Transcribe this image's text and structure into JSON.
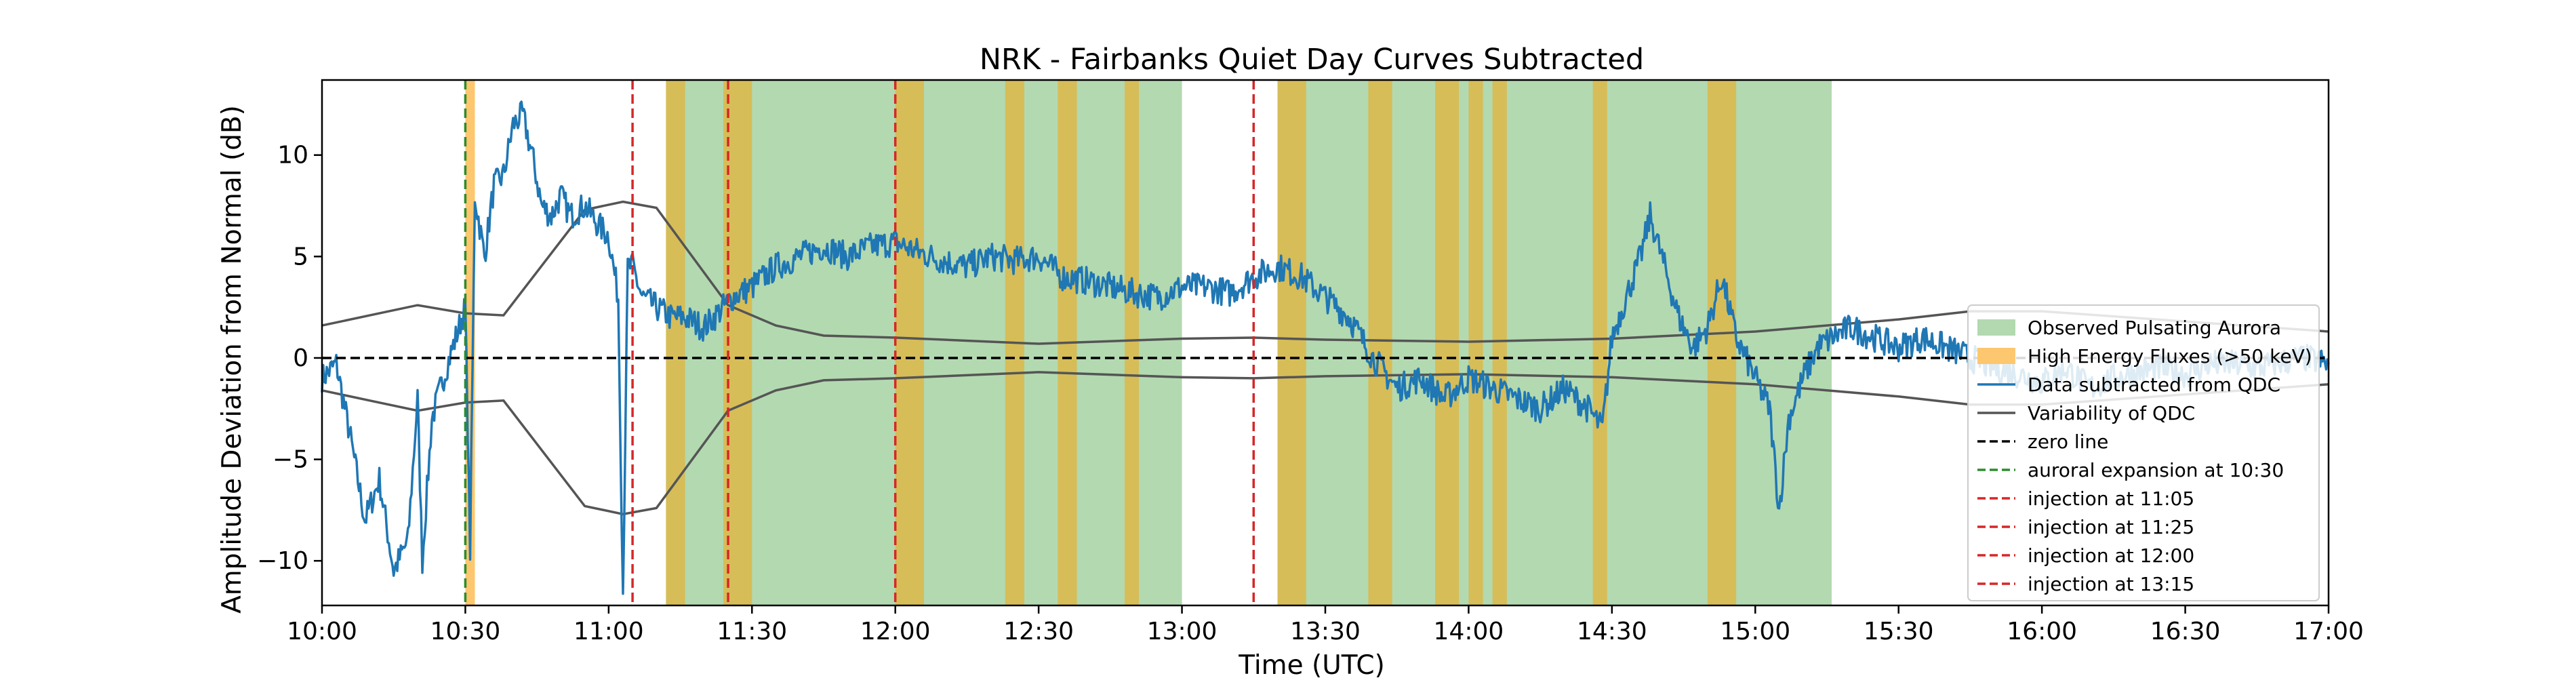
{
  "chart_data": {
    "type": "line",
    "title": "NRK - Fairbanks Quiet Day Curves Subtracted",
    "xlabel": "Time (UTC)",
    "ylabel": "Amplitude Deviation from Normal (dB)",
    "xlim": [
      "10:00",
      "17:00"
    ],
    "ylim": [
      -12.2,
      13.7
    ],
    "x_ticks": [
      "10:00",
      "10:30",
      "11:00",
      "11:30",
      "12:00",
      "12:30",
      "13:00",
      "13:30",
      "14:00",
      "14:30",
      "15:00",
      "15:30",
      "16:00",
      "16:30",
      "17:00"
    ],
    "y_ticks": [
      -10,
      -5,
      0,
      5,
      10
    ],
    "grid": false,
    "legend_position": "lower-right",
    "colors": {
      "pulsating": "#b3d9b0",
      "high_energy": "#fdc76f",
      "overlap": "#d6bd58",
      "data": "#1f77b4",
      "qdc": "#555555",
      "zero": "#000000",
      "auroral": "#2e8b2e",
      "injection": "#d62728"
    },
    "pulsating_aurora_periods": [
      [
        "11:12",
        "13:00"
      ],
      [
        "13:20",
        "15:16"
      ]
    ],
    "high_energy_periods": [
      [
        "10:30",
        "10:32"
      ],
      [
        "11:12",
        "11:16"
      ],
      [
        "11:24",
        "11:30"
      ],
      [
        "12:00",
        "12:06"
      ],
      [
        "12:23",
        "12:27"
      ],
      [
        "12:34",
        "12:38"
      ],
      [
        "12:48",
        "12:51"
      ],
      [
        "13:20",
        "13:26"
      ],
      [
        "13:39",
        "13:44"
      ],
      [
        "13:53",
        "13:58"
      ],
      [
        "14:00",
        "14:03"
      ],
      [
        "14:05",
        "14:08"
      ],
      [
        "14:26",
        "14:29"
      ],
      [
        "14:50",
        "14:56"
      ]
    ],
    "vertical_lines": [
      {
        "time": "10:30",
        "kind": "auroral"
      },
      {
        "time": "11:05",
        "kind": "injection"
      },
      {
        "time": "11:25",
        "kind": "injection"
      },
      {
        "time": "12:00",
        "kind": "injection"
      },
      {
        "time": "13:15",
        "kind": "injection"
      }
    ],
    "qdc_variability_upper": {
      "x": [
        "10:00",
        "10:10",
        "10:20",
        "10:30",
        "10:38",
        "10:55",
        "11:03",
        "11:10",
        "11:25",
        "11:35",
        "11:45",
        "12:00",
        "12:30",
        "13:00",
        "13:15",
        "13:30",
        "14:00",
        "14:30",
        "15:00",
        "15:30",
        "15:45",
        "16:00",
        "16:30",
        "17:00"
      ],
      "y": [
        1.6,
        2.1,
        2.6,
        2.2,
        2.1,
        7.3,
        7.7,
        7.4,
        2.6,
        1.6,
        1.1,
        1.0,
        0.7,
        0.95,
        1.0,
        0.9,
        0.8,
        0.95,
        1.3,
        1.9,
        2.3,
        2.3,
        1.8,
        1.3
      ]
    },
    "qdc_variability_lower": {
      "x": [
        "10:00",
        "10:10",
        "10:20",
        "10:30",
        "10:38",
        "10:55",
        "11:03",
        "11:10",
        "11:25",
        "11:35",
        "11:45",
        "12:00",
        "12:30",
        "13:00",
        "13:15",
        "13:30",
        "14:00",
        "14:30",
        "15:00",
        "15:30",
        "15:45",
        "16:00",
        "16:30",
        "17:00"
      ],
      "y": [
        -1.6,
        -2.1,
        -2.6,
        -2.2,
        -2.1,
        -7.3,
        -7.7,
        -7.4,
        -2.6,
        -1.6,
        -1.1,
        -1.0,
        -0.7,
        -0.95,
        -1.0,
        -0.9,
        -0.8,
        -0.95,
        -1.3,
        -1.9,
        -2.3,
        -2.3,
        -1.8,
        -1.3
      ]
    },
    "data_subtracted": {
      "x": [
        "10:00",
        "10:03",
        "10:06",
        "10:09",
        "10:12",
        "10:15",
        "10:18",
        "10:20",
        "10:21",
        "10:23",
        "10:26",
        "10:28",
        "10:30",
        "10:31",
        "10:32",
        "10:34",
        "10:36",
        "10:38",
        "10:40",
        "10:42",
        "10:44",
        "10:46",
        "10:48",
        "10:50",
        "10:52",
        "10:55",
        "10:58",
        "11:00",
        "11:02",
        "11:03",
        "11:04",
        "11:05",
        "11:07",
        "11:10",
        "11:13",
        "11:16",
        "11:20",
        "11:24",
        "11:26",
        "11:30",
        "11:35",
        "11:40",
        "11:45",
        "11:50",
        "11:55",
        "12:00",
        "12:05",
        "12:10",
        "12:15",
        "12:20",
        "12:25",
        "12:30",
        "12:35",
        "12:40",
        "12:45",
        "12:50",
        "12:55",
        "13:00",
        "13:05",
        "13:10",
        "13:15",
        "13:20",
        "13:25",
        "13:30",
        "13:35",
        "13:40",
        "13:45",
        "13:50",
        "13:55",
        "14:00",
        "14:05",
        "14:10",
        "14:15",
        "14:20",
        "14:25",
        "14:28",
        "14:30",
        "14:33",
        "14:36",
        "14:38",
        "14:41",
        "14:44",
        "14:47",
        "14:50",
        "14:53",
        "14:56",
        "14:58",
        "15:00",
        "15:03",
        "15:05",
        "15:07",
        "15:10",
        "15:13",
        "15:16",
        "15:20",
        "15:25",
        "15:30",
        "15:35",
        "15:40",
        "15:45",
        "15:50",
        "15:55",
        "16:00",
        "16:05",
        "16:10",
        "16:15",
        "16:20",
        "16:25",
        "16:30",
        "16:35",
        "16:40",
        "16:45",
        "16:50",
        "16:55",
        "17:00"
      ],
      "y": [
        -1.0,
        -0.3,
        -4.0,
        -8.0,
        -6.0,
        -10.5,
        -9.0,
        -2.0,
        -10.0,
        -3.0,
        -0.5,
        1.0,
        2.5,
        -9.5,
        8.0,
        5.0,
        8.5,
        9.0,
        11.5,
        12.0,
        10.0,
        7.5,
        7.0,
        8.0,
        7.0,
        7.5,
        6.5,
        6.0,
        3.0,
        -11.5,
        4.5,
        4.5,
        3.0,
        2.5,
        2.0,
        2.0,
        1.5,
        2.5,
        3.0,
        3.5,
        4.5,
        5.0,
        5.5,
        5.0,
        5.5,
        5.7,
        5.2,
        4.8,
        4.5,
        5.0,
        4.8,
        5.0,
        4.0,
        3.8,
        3.5,
        3.2,
        3.0,
        3.5,
        3.5,
        3.2,
        4.0,
        4.5,
        4.0,
        3.0,
        2.0,
        0.0,
        -1.5,
        -1.0,
        -2.0,
        -1.0,
        -1.5,
        -2.0,
        -2.5,
        -1.5,
        -2.5,
        -3.5,
        1.0,
        3.0,
        5.0,
        7.0,
        4.5,
        2.0,
        0.5,
        1.5,
        4.0,
        1.0,
        0.0,
        -1.0,
        -2.5,
        -7.5,
        -3.0,
        -1.0,
        0.5,
        1.0,
        1.5,
        1.0,
        0.5,
        1.0,
        0.5,
        0.0,
        -0.5,
        -0.8,
        -1.2,
        -0.5,
        -1.5,
        -1.0,
        -0.7,
        -0.5,
        -0.8,
        -0.3,
        -0.3,
        -0.5,
        -0.2,
        0.0,
        -0.3
      ]
    },
    "legend": [
      {
        "key": "pulsating",
        "label": "Observed Pulsating Aurora",
        "style": "patch"
      },
      {
        "key": "high_energy",
        "label": "High Energy Fluxes (>50 keV)",
        "style": "patch"
      },
      {
        "key": "data",
        "label": "Data subtracted from QDC",
        "style": "line"
      },
      {
        "key": "qdc",
        "label": "Variability of QDC",
        "style": "line"
      },
      {
        "key": "zero",
        "label": "zero line",
        "style": "dash"
      },
      {
        "key": "auroral",
        "label": "auroral expansion at 10:30",
        "style": "dash"
      },
      {
        "key": "injection",
        "label": "injection at 11:05",
        "style": "dash"
      },
      {
        "key": "injection",
        "label": "injection at 11:25",
        "style": "dash"
      },
      {
        "key": "injection",
        "label": "injection at 12:00",
        "style": "dash"
      },
      {
        "key": "injection",
        "label": "injection at 13:15",
        "style": "dash"
      }
    ]
  }
}
